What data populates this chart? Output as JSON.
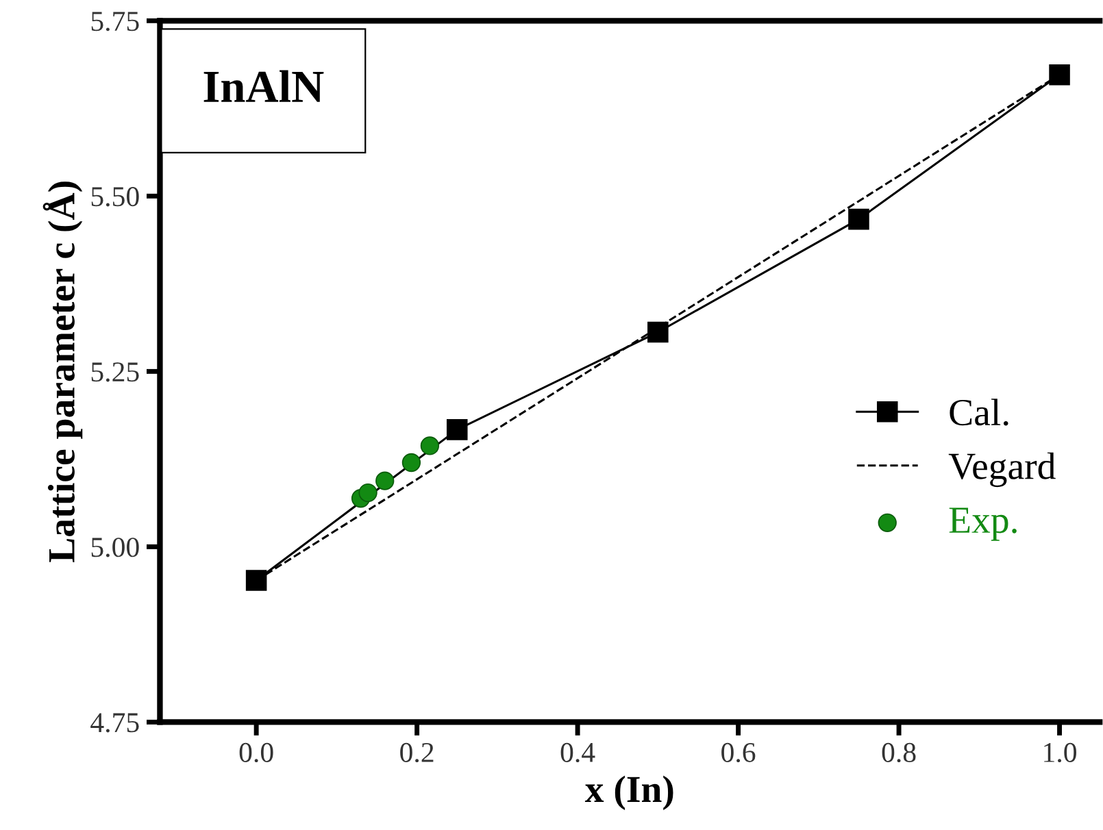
{
  "chart_data": {
    "type": "line",
    "xlabel": "x (In)",
    "ylabel": "Lattice parameter c (Å)",
    "annotations": [
      "InAlN"
    ],
    "series": [
      {
        "name": "Cal.",
        "color": "#000000",
        "marker": "square",
        "line_style": "solid",
        "x": [
          0.0,
          0.25,
          0.5,
          0.75,
          1.0
        ],
        "values": [
          4.952,
          5.167,
          5.306,
          5.467,
          5.673
        ]
      },
      {
        "name": "Vegard",
        "color": "#000000",
        "marker": "none",
        "line_style": "dashed",
        "x": [
          0.0,
          1.0
        ],
        "values": [
          4.952,
          5.673
        ]
      },
      {
        "name": "Exp.",
        "type": "scatter",
        "color": "#138a13",
        "marker": "circle",
        "x": [
          0.13,
          0.139,
          0.16,
          0.193,
          0.216
        ],
        "values": [
          5.069,
          5.077,
          5.094,
          5.12,
          5.144
        ]
      }
    ],
    "xlim": [
      -0.12,
      1.05
    ],
    "ylim": [
      4.75,
      5.75
    ],
    "xticks": [
      {
        "value": 0.0,
        "label": "0.0"
      },
      0.2,
      0.4,
      0.6,
      0.8,
      {
        "value": 1.0,
        "label": "1.0"
      }
    ],
    "yticks": [
      {
        "value": 4.75,
        "label": "4.75"
      },
      {
        "value": 5.0,
        "label": "5.00"
      },
      5.25,
      {
        "value": 5.5,
        "label": "5.50"
      },
      5.75
    ],
    "grid": false,
    "legend": "right"
  }
}
